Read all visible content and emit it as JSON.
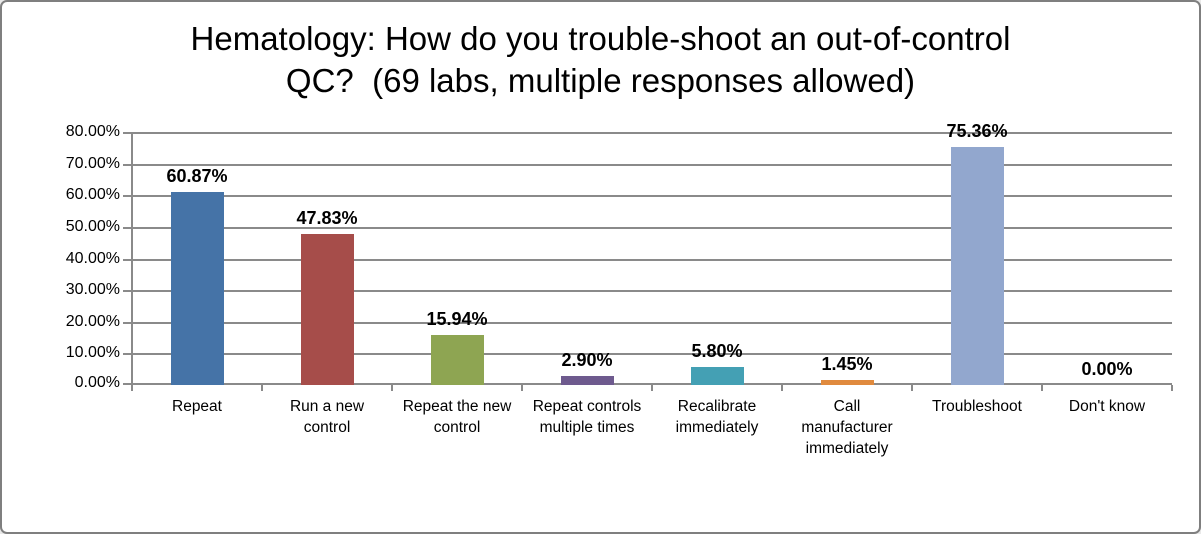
{
  "header": {
    "title_line1": "Hematology: How do you trouble-shoot an out-of-control",
    "title_line2": "QC?  (69 labs, multiple responses allowed)"
  },
  "chart_data": {
    "type": "bar",
    "title": "Hematology: How do you trouble-shoot an out-of-control QC?  (69 labs, multiple responses allowed)",
    "subtitle": "",
    "xlabel": "",
    "ylabel": "",
    "categories": [
      "Repeat",
      "Run a new control",
      "Repeat the new control",
      "Repeat controls multiple times",
      "Recalibrate immediately",
      "Call manufacturer immediately",
      "Troubleshoot",
      "Don't know"
    ],
    "values": [
      60.87,
      47.83,
      15.94,
      2.9,
      5.8,
      1.45,
      75.36,
      0.0
    ],
    "data_labels": [
      "60.87%",
      "47.83%",
      "15.94%",
      "2.90%",
      "5.80%",
      "1.45%",
      "75.36%",
      "0.00%"
    ],
    "bar_colors": [
      "#4573A7",
      "#A64D4A",
      "#8EA552",
      "#6E5A8E",
      "#44A0B4",
      "#E08A3E",
      "#92A7CE",
      "#92A7CE"
    ],
    "y_ticks_top_to_bottom": [
      "80.00%",
      "70.00%",
      "60.00%",
      "50.00%",
      "40.00%",
      "30.00%",
      "20.00%",
      "10.00%",
      "0.00%"
    ],
    "ylim": [
      0,
      80
    ],
    "grid": true,
    "legend_position": "none",
    "chrome": {
      "grid_color": "#8a8a8a",
      "axis_color": "#8a8a8a",
      "frame_border_color": "#7f7f7f",
      "background": "#ffffff",
      "text_color": "#000000"
    }
  }
}
